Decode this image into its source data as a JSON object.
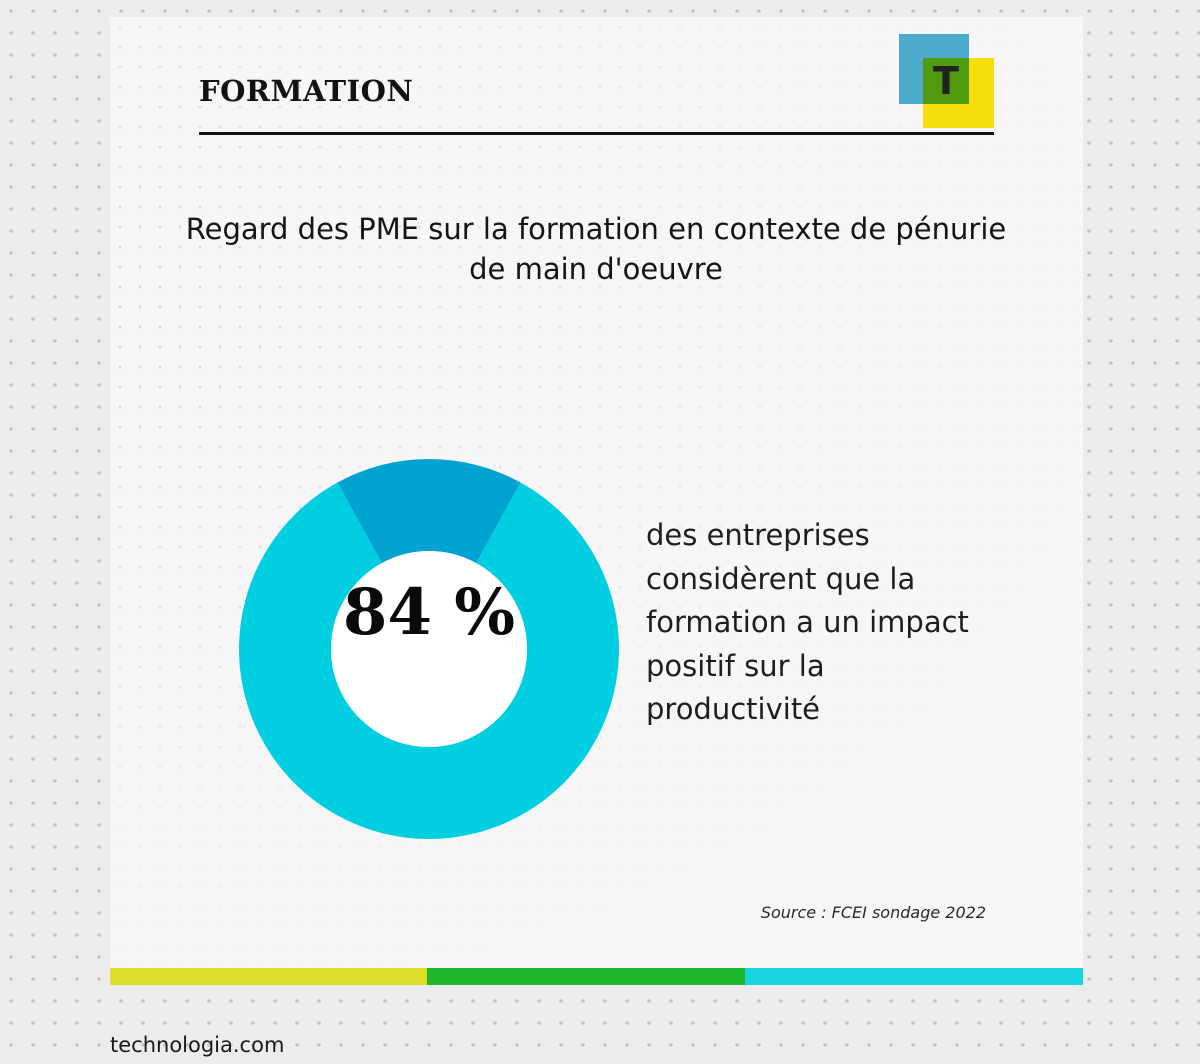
{
  "header": {
    "title": "FORMATION",
    "logo_letter": "T",
    "logo_colors": {
      "blue": "#3aa2c8",
      "yellow": "#f6de0c",
      "green": "#4f9a0e"
    }
  },
  "chart_data": {
    "type": "pie",
    "title": "Regard des PME sur la formation en contexte de pénurie de main d'oeuvre",
    "slices": [
      {
        "value": 84,
        "color": "#00cfe2"
      },
      {
        "value": 16,
        "color": "#00a3d0"
      }
    ],
    "center_label": "84 %",
    "description": "des entreprises considèrent que la formation a un impact positif sur la productivité",
    "source": "Source : FCEI sondage 2022"
  },
  "footer": {
    "website": "technologia.com",
    "bar_colors": [
      "#dedd2a",
      "#1fb62e",
      "#18d3e1"
    ]
  }
}
